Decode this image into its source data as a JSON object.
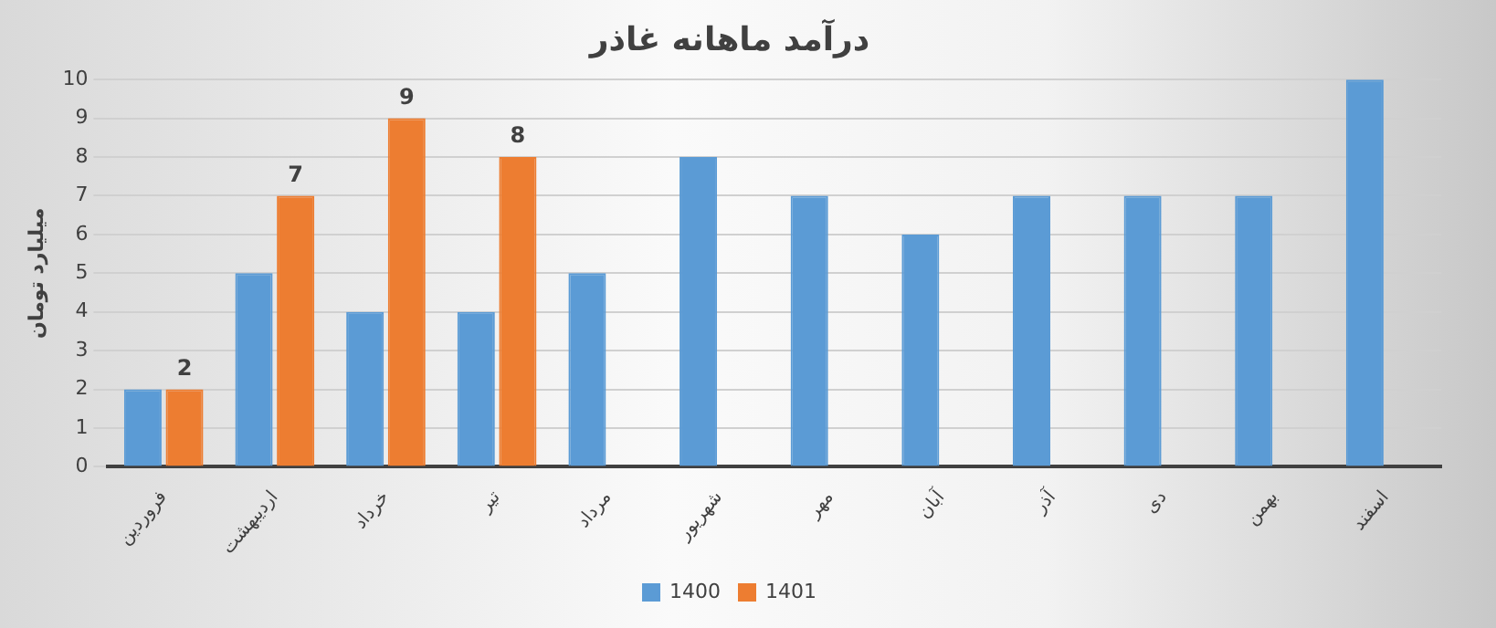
{
  "chart_data": {
    "type": "bar",
    "title": "درآمد ماهانه غاذر",
    "ylabel": "میلیارد تومان",
    "categories": [
      "فروردین",
      "اردیبهشت",
      "خرداد",
      "تیر",
      "مرداد",
      "شهریور",
      "مهر",
      "آبان",
      "آذر",
      "دی",
      "بهمن",
      "اسفند"
    ],
    "series": [
      {
        "name": "1400",
        "color": "#5b9bd5",
        "values": [
          2,
          5,
          4,
          4,
          5,
          8,
          7,
          6,
          7,
          7,
          7,
          10
        ]
      },
      {
        "name": "1401",
        "color": "#ed7d31",
        "values": [
          2,
          7,
          9,
          8,
          null,
          null,
          null,
          null,
          null,
          null,
          null,
          null
        ],
        "value_labels": [
          "2",
          "7",
          "9",
          "8",
          null,
          null,
          null,
          null,
          null,
          null,
          null,
          null
        ]
      }
    ],
    "ylim": [
      0,
      10
    ],
    "yticks": [
      0,
      1,
      2,
      3,
      4,
      5,
      6,
      7,
      8,
      9,
      10
    ],
    "grid": "y",
    "legend": "bottom"
  }
}
